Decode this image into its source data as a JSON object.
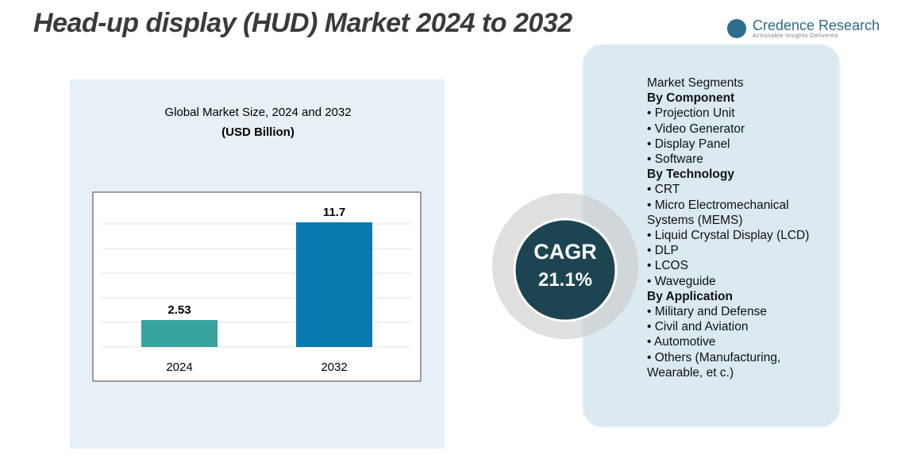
{
  "header": {
    "title": "Head-up display (HUD) Market 2024 to 2032",
    "brand": "Credence Research",
    "tagline": "Actionable Insights Delivered"
  },
  "chart_data": {
    "type": "bar",
    "title": "Global Market Size, 2024 and 2032",
    "subtitle": "(USD Billion)",
    "categories": [
      "2024",
      "2032"
    ],
    "values": [
      2.53,
      11.7
    ],
    "colors": [
      "#36a39c",
      "#0a79b0"
    ],
    "grid": true
  },
  "cagr": {
    "label": "CAGR",
    "value": "21.1%"
  },
  "segments": {
    "title": "Market Segments",
    "groups": [
      {
        "name": "By Component",
        "items": [
          "• Projection Unit",
          "• Video Generator",
          "• Display Panel",
          "• Software"
        ]
      },
      {
        "name": "By Technology",
        "items": [
          "• CRT",
          "• Micro Electromechanical Systems (MEMS)",
          "• Liquid Crystal Display (LCD)",
          "• DLP",
          "• LCOS",
          "• Waveguide"
        ]
      },
      {
        "name": "By Application",
        "items": [
          "• Military and Defense",
          "• Civil and Aviation",
          "• Automotive",
          "• Others (Manufacturing, Wearable, et c.)"
        ]
      }
    ]
  }
}
